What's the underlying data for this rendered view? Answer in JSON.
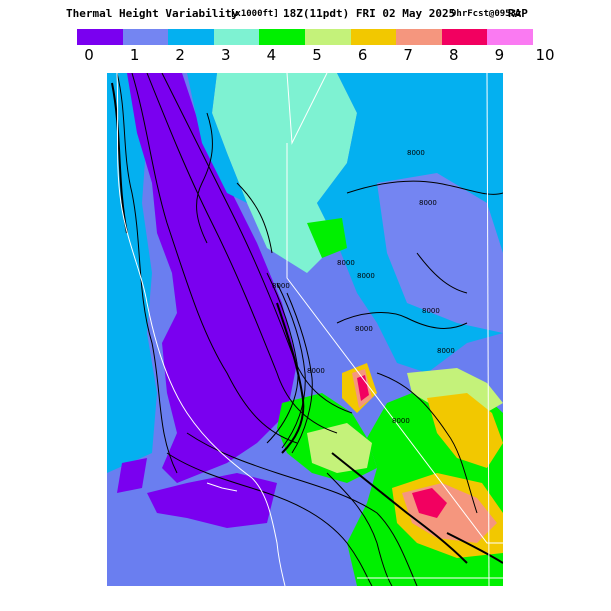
{
  "header": {
    "title": "Thermal Height Variability",
    "units": "[x1000ft]",
    "valid_time": "18Z(11pdt) FRI 02 May 2025",
    "forecast": "9hrFcst@0953z",
    "model": "RAP"
  },
  "scale": {
    "labels": [
      "0",
      "1",
      "2",
      "3",
      "4",
      "5",
      "6",
      "7",
      "8",
      "9",
      "10"
    ],
    "colors": [
      "#7a00f0",
      "#7485f2",
      "#04b0f0",
      "#7ef2d2",
      "#00f000",
      "#c4f27a",
      "#f2c800",
      "#f5967e",
      "#f20060",
      "#fa7af2"
    ]
  },
  "map": {
    "contour_labels": [
      "8000",
      "8000",
      "8000",
      "8000",
      "8000",
      "8000",
      "8000",
      "8000",
      "8000",
      "8000"
    ],
    "region_colors": {
      "very_low": "#7a00f0",
      "low": "#7485f2",
      "mid_low": "#04b0f0",
      "mid": "#7ef2d2",
      "green": "#00f000",
      "light_green": "#c4f27a",
      "yellow": "#f2c800",
      "salmon": "#f5967e",
      "red": "#f20060"
    },
    "icons": [
      "state-border-lines",
      "coastline",
      "contour-lines"
    ]
  }
}
